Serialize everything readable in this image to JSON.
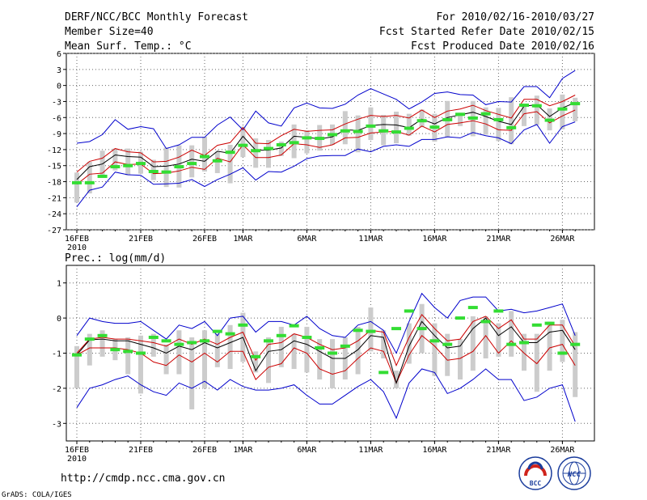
{
  "header": {
    "title": "DERF/NCC/BCC Monthly Forecast",
    "member_size": "Member Size=40",
    "variable": "Mean Surf. Temp.: °C",
    "period": "For 2010/02/16-2010/03/27",
    "fcst_started": "Fcst Started Refer Date 2010/02/15",
    "fcst_produced": "Fcst Produced Date 2010/02/16"
  },
  "footer": {
    "url": "http://cmdp.ncc.cma.gov.cn",
    "grads": "GrADS: COLA/IGES",
    "logo_bcc": "BCC",
    "logo_ncc": "NCC"
  },
  "colors": {
    "envelope": "#0000cc",
    "spread": "#cc0000",
    "mean": "#000000",
    "box": "#cccccc",
    "clim": "#33dd33",
    "grid": "#666666"
  },
  "chart_data": [
    {
      "type": "line",
      "title": "Mean Surf. Temp.: °C",
      "xlabel": "",
      "ylabel": "",
      "ylim": [
        -27,
        6
      ],
      "yticks": [
        "6",
        "3",
        "0",
        "-3",
        "-6",
        "-9",
        "-12",
        "-15",
        "-18",
        "-21",
        "-24",
        "-27"
      ],
      "xticks": [
        {
          "day": 0,
          "label": "16FEB",
          "sub": "2010"
        },
        {
          "day": 5,
          "label": "21FEB"
        },
        {
          "day": 10,
          "label": "26FEB"
        },
        {
          "day": 13,
          "label": "1MAR"
        },
        {
          "day": 18,
          "label": "6MAR"
        },
        {
          "day": 23,
          "label": "11MAR"
        },
        {
          "day": 28,
          "label": "16MAR"
        },
        {
          "day": 33,
          "label": "21MAR"
        },
        {
          "day": 38,
          "label": "26MAR"
        }
      ],
      "series": [
        {
          "name": "ensemble max",
          "values": [
            -10.8,
            -10.5,
            -9.2,
            -6.4,
            -8.2,
            -7.7,
            -8.1,
            -11.8,
            -11.1,
            -9.7,
            -9.7,
            -7.4,
            -5.9,
            -8.3,
            -4.8,
            -7,
            -7.6,
            -4.2,
            -3.3,
            -4.2,
            -4.3,
            -3.5,
            -1.8,
            -0.6,
            -1.6,
            -2.6,
            -4.4,
            -3.1,
            -1.5,
            -1.2,
            -1.7,
            -1.8,
            -3.6,
            -3,
            -3.1,
            -0.2,
            -0.2,
            -2.3,
            1.3,
            2.8
          ]
        },
        {
          "name": "ensemble mean +spread",
          "values": [
            -16.2,
            -14.2,
            -13.6,
            -11.8,
            -12.4,
            -12.6,
            -14.3,
            -14.2,
            -13.4,
            -12.1,
            -13.1,
            -11.2,
            -10.7,
            -7.9,
            -10.8,
            -10.9,
            -9.4,
            -8.2,
            -8.6,
            -8.4,
            -8.3,
            -7.2,
            -6.3,
            -5.6,
            -5.8,
            -5.6,
            -6.1,
            -4.6,
            -6,
            -4.8,
            -4.4,
            -3.7,
            -4.7,
            -5.4,
            -6.1,
            -2.6,
            -2.6,
            -3.8,
            -3,
            -1.8
          ]
        },
        {
          "name": "ensemble mean",
          "values": [
            -17.6,
            -15.2,
            -14.7,
            -13,
            -13.3,
            -13.4,
            -15.2,
            -15.1,
            -14.7,
            -13.8,
            -14.2,
            -12.3,
            -12.7,
            -9.5,
            -12.1,
            -12.1,
            -11.7,
            -9.5,
            -9.7,
            -10,
            -9.6,
            -8.3,
            -8.4,
            -7.5,
            -7.3,
            -7.4,
            -7.9,
            -6.3,
            -7.2,
            -6,
            -5.5,
            -5,
            -5.8,
            -6.7,
            -7.3,
            -3.9,
            -3.6,
            -5.8,
            -4.2,
            -3.2
          ]
        },
        {
          "name": "ensemble mean -spread",
          "values": [
            -18.5,
            -16.6,
            -16.4,
            -14.3,
            -14.8,
            -14.7,
            -16.5,
            -16.4,
            -16,
            -15.3,
            -15.7,
            -13.6,
            -14.3,
            -11.1,
            -13.5,
            -13.5,
            -13,
            -10.9,
            -11.1,
            -11.6,
            -11.1,
            -9.8,
            -9.7,
            -8.9,
            -8.7,
            -8.6,
            -9.3,
            -7.6,
            -8.7,
            -7.3,
            -7,
            -6.6,
            -7.2,
            -8.3,
            -8.4,
            -5.3,
            -4.9,
            -7,
            -5.7,
            -4.6
          ]
        },
        {
          "name": "ensemble min",
          "values": [
            -22.7,
            -19.6,
            -19,
            -16.2,
            -16.7,
            -16.8,
            -18.5,
            -18.4,
            -18.3,
            -17.6,
            -18.9,
            -17.6,
            -16.6,
            -15.4,
            -17.7,
            -16.1,
            -16.2,
            -15.1,
            -13.7,
            -13.2,
            -13.1,
            -13.1,
            -11.9,
            -12.4,
            -11.4,
            -11.1,
            -11.4,
            -10.1,
            -10.1,
            -9.6,
            -9.8,
            -8.8,
            -9.4,
            -9.8,
            -10.9,
            -8.3,
            -7.3,
            -10.8,
            -7.7,
            -6.8
          ]
        },
        {
          "name": "quartile box upper",
          "values": [
            -16.3,
            -14.3,
            -12.2,
            -11.8,
            -11.8,
            -12.4,
            -13.9,
            -11.6,
            -11.2,
            -11.2,
            -9.6,
            -12.4,
            -11.1,
            -7.7,
            -9.9,
            -10.2,
            -10.5,
            -7.3,
            -8.4,
            -7.4,
            -7.3,
            -4.8,
            -5.6,
            -4.1,
            -5.5,
            -4.9,
            -5.3,
            -4.5,
            -5.3,
            -2.9,
            -5.1,
            -2.9,
            -4.1,
            -4.2,
            -2.2,
            -3.7,
            -1.9,
            -4.3,
            -1.7,
            -2.3
          ]
        },
        {
          "name": "quartile box lower",
          "values": [
            -21.9,
            -20.2,
            -16.9,
            -15.9,
            -16.8,
            -16.5,
            -17.7,
            -19,
            -19.1,
            -17.2,
            -16.1,
            -16.4,
            -18.3,
            -13.4,
            -15.4,
            -15.4,
            -13.2,
            -13.6,
            -12.7,
            -12.2,
            -11.1,
            -11,
            -12.5,
            -10.2,
            -11.2,
            -10.8,
            -9.4,
            -7.8,
            -10.5,
            -9.7,
            -7.6,
            -9.5,
            -9.2,
            -10.4,
            -11,
            -7.6,
            -7.4,
            -8.4,
            -8.2,
            -6.7
          ]
        },
        {
          "name": "climatology",
          "values": [
            -18.2,
            -18.2,
            -17,
            -15.2,
            -15,
            -14.6,
            -16.1,
            -16.2,
            -15.2,
            -14.6,
            -13.3,
            -14.1,
            -12.5,
            -11.2,
            -12.2,
            -11.8,
            -11.1,
            -10.7,
            -9.8,
            -9.9,
            -9.2,
            -8.5,
            -8.6,
            -7.6,
            -8.5,
            -8.7,
            -8,
            -6.6,
            -7.8,
            -6.4,
            -5.4,
            -6.1,
            -5.3,
            -6.4,
            -7.9,
            -3.7,
            -3.8,
            -6.5,
            -4.4,
            -3.4
          ]
        }
      ]
    },
    {
      "type": "line",
      "title": "Prec.: log(mm/d)",
      "xlabel": "",
      "ylabel": "",
      "ylim": [
        -3.5,
        1.5
      ],
      "yticks": [
        "1",
        "0",
        "-1",
        "-2",
        "-3"
      ],
      "xticks": [
        {
          "day": 0,
          "label": "16FEB",
          "sub": "2010"
        },
        {
          "day": 5,
          "label": "21FEB"
        },
        {
          "day": 10,
          "label": "26FEB"
        },
        {
          "day": 13,
          "label": "1MAR"
        },
        {
          "day": 18,
          "label": "6MAR"
        },
        {
          "day": 23,
          "label": "11MAR"
        },
        {
          "day": 28,
          "label": "16MAR"
        },
        {
          "day": 33,
          "label": "21MAR"
        },
        {
          "day": 38,
          "label": "26MAR"
        }
      ],
      "series": [
        {
          "name": "ensemble max",
          "values": [
            -0.5,
            0,
            -0.1,
            -0.15,
            -0.15,
            -0.1,
            -0.35,
            -0.6,
            -0.2,
            -0.3,
            -0.1,
            -0.5,
            0,
            0.05,
            -0.4,
            -0.1,
            -0.1,
            -0.2,
            0.05,
            -0.3,
            -0.5,
            -0.55,
            -0.2,
            -0.1,
            -0.35,
            -1.0,
            -0.1,
            0.7,
            0.3,
            0,
            0.5,
            0.6,
            0.6,
            0.2,
            0.25,
            0.15,
            0.2,
            0.3,
            0.4,
            -0.5
          ]
        },
        {
          "name": "ensemble mean +spread",
          "values": [
            -1.0,
            -0.6,
            -0.55,
            -0.6,
            -0.6,
            -0.65,
            -0.7,
            -0.8,
            -0.6,
            -0.75,
            -0.6,
            -0.75,
            -0.55,
            -0.4,
            -1.2,
            -0.75,
            -0.7,
            -0.45,
            -0.55,
            -0.75,
            -0.9,
            -0.85,
            -0.65,
            -0.35,
            -0.4,
            -1.35,
            -0.55,
            0.1,
            -0.3,
            -0.65,
            -0.6,
            -0.1,
            0.05,
            -0.3,
            -0.05,
            -0.6,
            -0.6,
            -0.2,
            -0.2,
            -0.8
          ]
        },
        {
          "name": "ensemble mean",
          "values": [
            -1.05,
            -0.62,
            -0.6,
            -0.65,
            -0.65,
            -0.75,
            -0.85,
            -1.0,
            -0.8,
            -0.9,
            -0.7,
            -0.85,
            -0.7,
            -0.55,
            -1.5,
            -0.95,
            -0.9,
            -0.65,
            -0.75,
            -0.95,
            -1.15,
            -1.15,
            -0.9,
            -0.5,
            -0.55,
            -1.85,
            -0.8,
            -0.1,
            -0.5,
            -0.85,
            -0.8,
            -0.3,
            0,
            -0.5,
            -0.25,
            -0.7,
            -0.7,
            -0.4,
            -0.35,
            -0.9
          ]
        },
        {
          "name": "ensemble mean -spread",
          "values": [
            -1.05,
            -0.85,
            -0.85,
            -0.85,
            -0.9,
            -1.0,
            -1.25,
            -1.35,
            -1.05,
            -1.25,
            -1.0,
            -1.25,
            -0.95,
            -0.95,
            -1.75,
            -1.4,
            -1.3,
            -0.85,
            -1.0,
            -1.45,
            -1.6,
            -1.5,
            -1.15,
            -0.85,
            -0.95,
            -1.85,
            -1.05,
            -0.5,
            -0.8,
            -1.2,
            -1.15,
            -0.95,
            -0.5,
            -1.0,
            -0.65,
            -1.0,
            -1.3,
            -0.85,
            -0.75,
            -1.35
          ]
        },
        {
          "name": "ensemble min",
          "values": [
            -2.55,
            -2.0,
            -1.9,
            -1.75,
            -1.65,
            -1.9,
            -2.1,
            -2.2,
            -1.85,
            -2.0,
            -1.8,
            -2.05,
            -1.75,
            -1.95,
            -2.05,
            -2.05,
            -2.0,
            -1.9,
            -2.2,
            -2.45,
            -2.45,
            -2.2,
            -1.95,
            -1.75,
            -2.1,
            -2.85,
            -1.85,
            -1.45,
            -1.55,
            -2.15,
            -2.0,
            -1.75,
            -1.45,
            -1.75,
            -1.75,
            -2.35,
            -2.25,
            -2.0,
            -1.9,
            -2.95
          ]
        },
        {
          "name": "quartile box upper",
          "values": [
            -0.8,
            -0.45,
            -0.35,
            -0.6,
            -0.55,
            -0.5,
            -0.45,
            -0.75,
            -0.35,
            -0.55,
            -0.35,
            -0.45,
            -0.2,
            0.15,
            -0.95,
            -0.55,
            -0.25,
            -0.45,
            -0.25,
            -0.6,
            -0.6,
            -0.55,
            -0.25,
            0.3,
            -0.35,
            -1.5,
            -0.15,
            0.4,
            -0.15,
            -0.45,
            -0.6,
            0.05,
            0.05,
            -0.15,
            0.2,
            -0.45,
            -0.45,
            -0.1,
            -0.05,
            -0.4
          ]
        },
        {
          "name": "quartile box lower",
          "values": [
            -2.0,
            -1.35,
            -1.1,
            -1.2,
            -1.6,
            -2.15,
            -1.1,
            -1.6,
            -1.6,
            -2.6,
            -2.0,
            -1.4,
            -1.45,
            -1.25,
            -1.55,
            -1.85,
            -1.4,
            -1.45,
            -1.55,
            -1.75,
            -2.0,
            -1.75,
            -1.6,
            -0.95,
            -1.15,
            -2.0,
            -1.3,
            -1.0,
            -1.65,
            -1.65,
            -1.75,
            -1.5,
            -1.15,
            -1.1,
            -1.1,
            -1.5,
            -2.1,
            -1.5,
            -1.25,
            -2.25
          ]
        },
        {
          "name": "climatology",
          "values": [
            -1.05,
            -0.6,
            -0.5,
            -0.9,
            -0.95,
            -1.0,
            -0.55,
            -0.65,
            -0.75,
            -0.7,
            -0.65,
            -0.38,
            -0.45,
            -0.2,
            -1.1,
            -0.65,
            -0.5,
            -0.22,
            -0.55,
            -0.85,
            -1.0,
            -0.8,
            -0.35,
            -0.38,
            -1.55,
            -0.3,
            0.2,
            -0.3,
            -0.65,
            -0.75,
            0,
            0.3,
            -0.1,
            0.2,
            -0.75,
            -0.7,
            -0.2,
            -0.15,
            -1.0,
            -0.75
          ]
        }
      ]
    }
  ]
}
